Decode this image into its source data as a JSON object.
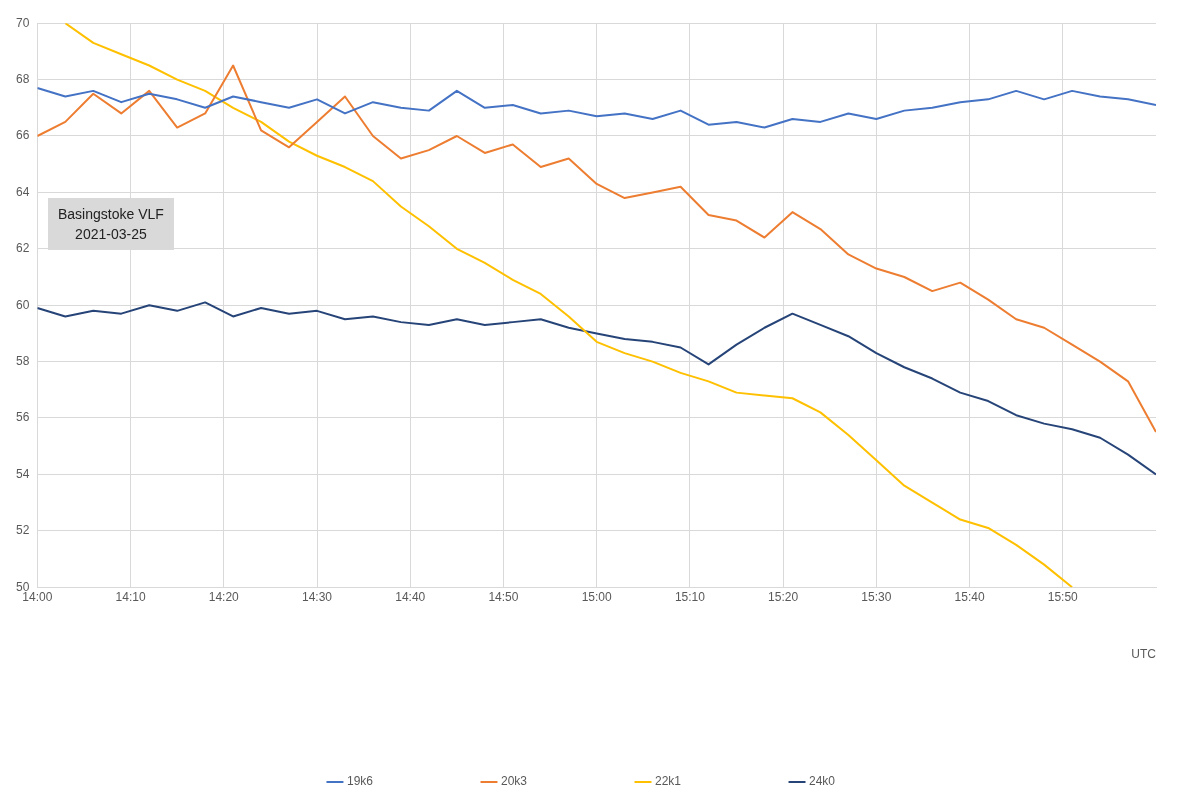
{
  "chart_data": {
    "type": "line",
    "xlabel": "UTC",
    "annotations": [
      "Basingstoke VLF",
      "2021-03-25"
    ],
    "x": [
      14,
      14.05,
      14.1,
      14.15,
      14.2,
      14.25,
      14.3,
      14.35,
      14.4,
      14.45,
      14.5,
      14.55,
      14.6,
      14.65,
      14.7,
      14.75,
      14.8,
      14.85,
      14.9,
      14.95,
      15,
      15.05,
      15.1,
      15.15,
      15.2,
      15.25,
      15.3,
      15.35,
      15.4,
      15.45,
      15.5,
      15.55,
      15.6,
      15.65,
      15.7,
      15.75,
      15.8,
      15.85,
      15.9,
      15.95,
      16
    ],
    "xlim": [
      14,
      16
    ],
    "xticks": [
      {
        "value": 14,
        "label": "14:00"
      },
      {
        "value": 14.1667,
        "label": "14:10"
      },
      {
        "value": 14.3333,
        "label": "14:20"
      },
      {
        "value": 14.5,
        "label": "14:30"
      },
      {
        "value": 14.6667,
        "label": "14:40"
      },
      {
        "value": 14.8333,
        "label": "14:50"
      },
      {
        "value": 15,
        "label": "15:00"
      },
      {
        "value": 15.1667,
        "label": "15:10"
      },
      {
        "value": 15.3333,
        "label": "15:20"
      },
      {
        "value": 15.5,
        "label": "15:30"
      },
      {
        "value": 15.6667,
        "label": "15:40"
      },
      {
        "value": 15.8333,
        "label": "15:50"
      }
    ],
    "ylim": [
      50,
      70
    ],
    "yticks": [
      50,
      52,
      54,
      56,
      58,
      60,
      62,
      64,
      66,
      68,
      70
    ],
    "grid": true,
    "legend": "bottom",
    "marker": "none",
    "line_style": "solid",
    "series": [
      {
        "name": "19k6",
        "color": "#4472c4",
        "values": [
          67.7,
          67.4,
          67.6,
          67.2,
          67.5,
          67.3,
          67.0,
          67.4,
          67.2,
          67.0,
          67.3,
          66.8,
          67.2,
          67.0,
          66.9,
          67.6,
          67.0,
          67.1,
          66.8,
          66.9,
          66.7,
          66.8,
          66.6,
          66.9,
          66.4,
          66.5,
          66.3,
          66.6,
          66.5,
          66.8,
          66.6,
          66.9,
          67.0,
          67.2,
          67.3,
          67.6,
          67.3,
          67.6,
          67.4,
          67.3,
          67.1
        ]
      },
      {
        "name": "20k3",
        "color": "#ed7d31",
        "values": [
          66.0,
          66.5,
          67.5,
          66.8,
          67.6,
          66.3,
          66.8,
          68.5,
          66.2,
          65.6,
          66.5,
          67.4,
          66.0,
          65.2,
          65.5,
          66.0,
          65.4,
          65.7,
          64.9,
          65.2,
          64.3,
          63.8,
          64.0,
          64.2,
          63.2,
          63.0,
          62.4,
          63.3,
          62.7,
          61.8,
          61.3,
          61.0,
          60.5,
          60.8,
          60.2,
          59.5,
          59.2,
          58.6,
          58.0,
          57.3,
          55.5
        ]
      },
      {
        "name": "22k1",
        "color": "#ffc000",
        "values": [
          null,
          70.0,
          69.3,
          68.9,
          68.5,
          68.0,
          67.6,
          67.0,
          66.5,
          65.8,
          65.3,
          64.9,
          64.4,
          63.5,
          62.8,
          62.0,
          61.5,
          60.9,
          60.4,
          59.6,
          58.7,
          58.3,
          58.0,
          57.6,
          57.3,
          56.9,
          56.8,
          56.7,
          56.2,
          55.4,
          54.5,
          53.6,
          53.0,
          52.4,
          52.1,
          51.5,
          50.8,
          50.0,
          null,
          null,
          null
        ]
      },
      {
        "name": "24k0",
        "color": "#264478",
        "values": [
          59.9,
          59.6,
          59.8,
          59.7,
          60.0,
          59.8,
          60.1,
          59.6,
          59.9,
          59.7,
          59.8,
          59.5,
          59.6,
          59.4,
          59.3,
          59.5,
          59.3,
          59.4,
          59.5,
          59.2,
          59.0,
          58.8,
          58.7,
          58.5,
          57.9,
          58.6,
          59.2,
          59.7,
          59.3,
          58.9,
          58.3,
          57.8,
          57.4,
          56.9,
          56.6,
          56.1,
          55.8,
          55.6,
          55.3,
          54.7,
          54.0
        ]
      }
    ]
  }
}
